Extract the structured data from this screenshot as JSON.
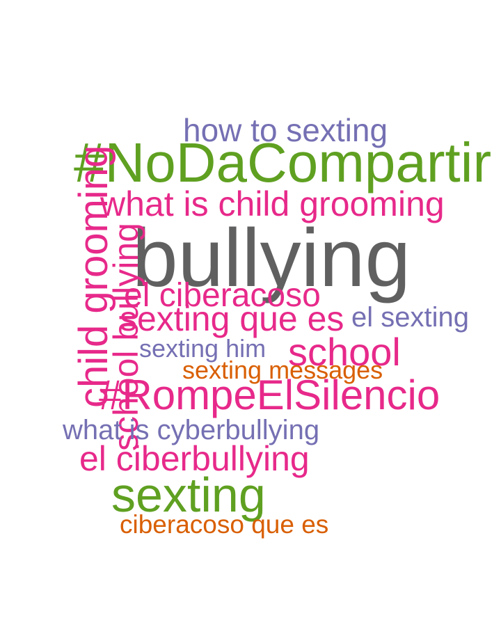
{
  "colors": {
    "gray": "#606060",
    "pink": "#e7298a",
    "green": "#5fa021",
    "purple": "#7570b3",
    "orange": "#d95f02"
  },
  "words": [
    {
      "id": "bullying",
      "text": "bullying",
      "color": "gray"
    },
    {
      "id": "noda",
      "text": "#NoDaCompartir",
      "color": "green"
    },
    {
      "id": "child-grooming",
      "text": "child grooming",
      "color": "pink"
    },
    {
      "id": "school-bullying",
      "text": "school bullying",
      "color": "pink"
    },
    {
      "id": "how-to-sexting",
      "text": "how to sexting",
      "color": "purple"
    },
    {
      "id": "what-is-child-grooming",
      "text": "what is child grooming",
      "color": "pink"
    },
    {
      "id": "el-ciberacoso",
      "text": "el ciberacoso",
      "color": "pink"
    },
    {
      "id": "sexting-que-es",
      "text": "sexting que es",
      "color": "pink"
    },
    {
      "id": "el-sexting",
      "text": "el sexting",
      "color": "purple"
    },
    {
      "id": "sexting-him",
      "text": "sexting him",
      "color": "purple"
    },
    {
      "id": "school",
      "text": "school",
      "color": "pink"
    },
    {
      "id": "sexting-messages",
      "text": "sexting messages",
      "color": "orange"
    },
    {
      "id": "rompe",
      "text": "#RompeElSilencio",
      "color": "pink"
    },
    {
      "id": "what-is-cyberbullying",
      "text": "what is cyberbullying",
      "color": "purple"
    },
    {
      "id": "el-ciberbullying",
      "text": "el ciberbullying",
      "color": "pink"
    },
    {
      "id": "sexting",
      "text": "sexting",
      "color": "green"
    },
    {
      "id": "ciberacoso-que-es",
      "text": "ciberacoso que es",
      "color": "orange"
    }
  ]
}
